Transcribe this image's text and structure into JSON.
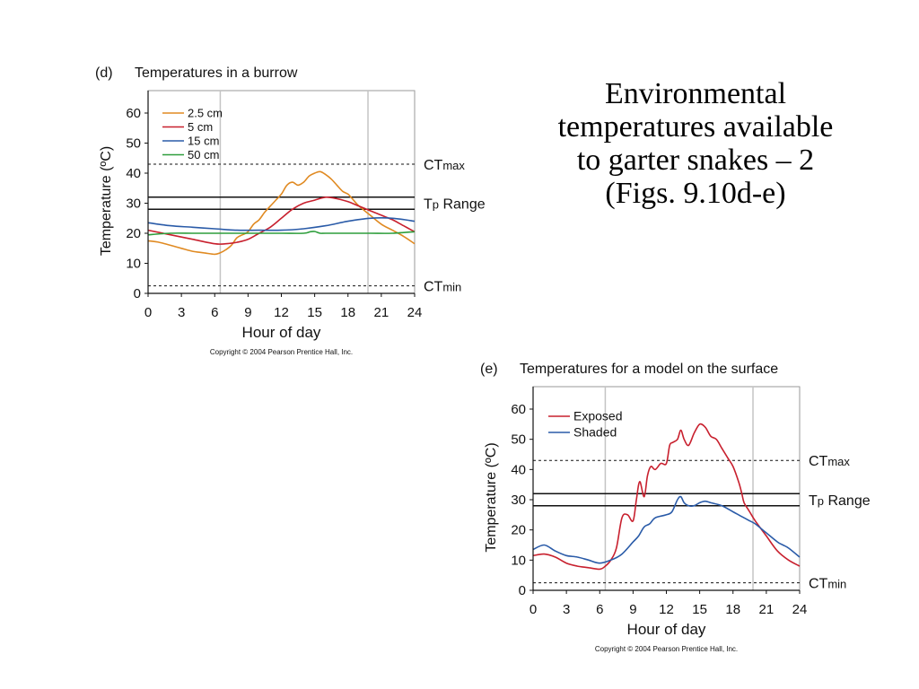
{
  "slide": {
    "title_lines": [
      "Environmental",
      "temperatures available",
      "to garter snakes – 2",
      "(Figs. 9.10d-e)"
    ]
  },
  "chart_data": [
    {
      "type": "line",
      "panel_label": "(d)",
      "title": "Temperatures in a burrow",
      "xlabel": "Hour of day",
      "ylabel": "Temperature (ºC)",
      "xlim": [
        0,
        24
      ],
      "ylim": [
        0,
        60
      ],
      "xticks": [
        0,
        3,
        6,
        9,
        12,
        15,
        18,
        21,
        24
      ],
      "yticks": [
        0,
        10,
        20,
        30,
        40,
        50,
        60
      ],
      "vlines": [
        6.5,
        19.8
      ],
      "ct_max": {
        "value": 43,
        "label": "CTmax"
      },
      "ct_min": {
        "value": 2.5,
        "label": "CTmin"
      },
      "tp_range": {
        "low": 28,
        "high": 32,
        "label": "Tp Range"
      },
      "copyright": "Copyright © 2004 Pearson Prentice Hall, Inc.",
      "series": [
        {
          "name": "2.5 cm",
          "color": "#E08A22",
          "x": [
            0,
            1,
            2,
            3,
            4,
            5,
            6,
            6.5,
            7,
            7.5,
            8,
            8.5,
            9,
            9.5,
            10,
            10.5,
            11,
            11.5,
            12,
            12.5,
            13,
            13.5,
            14,
            14.5,
            15,
            15.5,
            16,
            16.5,
            17,
            17.5,
            18,
            18.5,
            19,
            20,
            21,
            22,
            23,
            24
          ],
          "y": [
            17.5,
            17,
            16,
            15,
            14,
            13.5,
            13,
            13.5,
            14.5,
            16,
            18.5,
            19.5,
            20.5,
            23,
            24.5,
            27,
            29,
            31,
            33,
            36,
            37,
            36,
            37,
            39,
            40,
            40.5,
            39.5,
            38,
            36,
            34,
            33,
            31,
            29,
            26,
            23,
            21,
            19,
            16.5
          ]
        },
        {
          "name": "5 cm",
          "color": "#C8202E",
          "x": [
            0,
            2,
            4,
            6,
            7,
            8,
            9,
            10,
            11,
            12,
            13,
            14,
            15,
            16,
            17,
            18,
            19,
            20,
            21,
            22,
            23,
            24
          ],
          "y": [
            21,
            19.5,
            18,
            16.5,
            16.5,
            17,
            18,
            20,
            22,
            25,
            28,
            30,
            31,
            32,
            31.5,
            30.5,
            29,
            27.5,
            26,
            24.5,
            22.5,
            20.5
          ]
        },
        {
          "name": "15 cm",
          "color": "#2A5BA8",
          "x": [
            0,
            2,
            4,
            6,
            8,
            10,
            12,
            14,
            16,
            18,
            20,
            22,
            24
          ],
          "y": [
            23.5,
            22.5,
            22,
            21.5,
            21,
            21,
            21,
            21.5,
            22.5,
            24,
            25,
            25,
            24
          ]
        },
        {
          "name": "50 cm",
          "color": "#2E9E3C",
          "x": [
            0,
            2,
            4,
            6,
            8,
            10,
            12,
            14,
            14.6,
            15,
            15.5,
            16,
            18,
            20,
            22,
            24
          ],
          "y": [
            19.5,
            20,
            20,
            20,
            20,
            20,
            20,
            20,
            20.5,
            20.6,
            20,
            20,
            20,
            20,
            20,
            20.5
          ]
        }
      ]
    },
    {
      "type": "line",
      "panel_label": "(e)",
      "title": "Temperatures for a model on the surface",
      "xlabel": "Hour of day",
      "ylabel": "Temperature (ºC)",
      "xlim": [
        0,
        24
      ],
      "ylim": [
        0,
        60
      ],
      "xticks": [
        0,
        3,
        6,
        9,
        12,
        15,
        18,
        21,
        24
      ],
      "yticks": [
        0,
        10,
        20,
        30,
        40,
        50,
        60
      ],
      "vlines": [
        6.5,
        19.8
      ],
      "ct_max": {
        "value": 43,
        "label": "CTmax"
      },
      "ct_min": {
        "value": 2.5,
        "label": "CTmin"
      },
      "tp_range": {
        "low": 28,
        "high": 32,
        "label": "Tp Range"
      },
      "copyright": "Copyright © 2004 Pearson Prentice Hall, Inc.",
      "series": [
        {
          "name": "Exposed",
          "color": "#C8202E",
          "x": [
            0,
            1,
            2,
            3,
            4,
            5,
            6,
            6.5,
            7,
            7.5,
            8,
            8.5,
            9,
            9.3,
            9.6,
            10,
            10.3,
            10.6,
            11,
            11.5,
            12,
            12.3,
            12.6,
            13,
            13.3,
            13.6,
            14,
            14.5,
            15,
            15.5,
            16,
            16.5,
            17,
            17.5,
            18,
            18.5,
            18.8,
            19,
            19.5,
            20,
            21,
            22,
            23,
            24
          ],
          "y": [
            11.5,
            12,
            11,
            9,
            8,
            7.5,
            7,
            8,
            10,
            14,
            24,
            25,
            23,
            30,
            36,
            31,
            38,
            41,
            40,
            42,
            42,
            48,
            49,
            50,
            53,
            50,
            48,
            52,
            55,
            54,
            51,
            50,
            47,
            44,
            41,
            36,
            32,
            29,
            26,
            23,
            18,
            13,
            10,
            8
          ]
        },
        {
          "name": "Shaded",
          "color": "#2A5BA8",
          "x": [
            0,
            1,
            2,
            3,
            4,
            5,
            6,
            7,
            8,
            9,
            9.5,
            10,
            10.5,
            11,
            12,
            12.5,
            13,
            13.3,
            13.6,
            14,
            14.5,
            15,
            15.5,
            16,
            17,
            18,
            18.5,
            19,
            19.5,
            20,
            21,
            22,
            22.5,
            23,
            24
          ],
          "y": [
            13.5,
            15,
            13,
            11.5,
            11,
            10,
            9,
            10,
            12,
            16,
            18,
            21,
            22,
            24,
            25,
            26,
            30,
            31,
            29,
            28,
            28,
            29,
            29.5,
            29,
            28,
            26,
            25,
            24,
            23,
            22,
            19,
            16,
            15,
            14,
            11
          ]
        }
      ]
    }
  ]
}
